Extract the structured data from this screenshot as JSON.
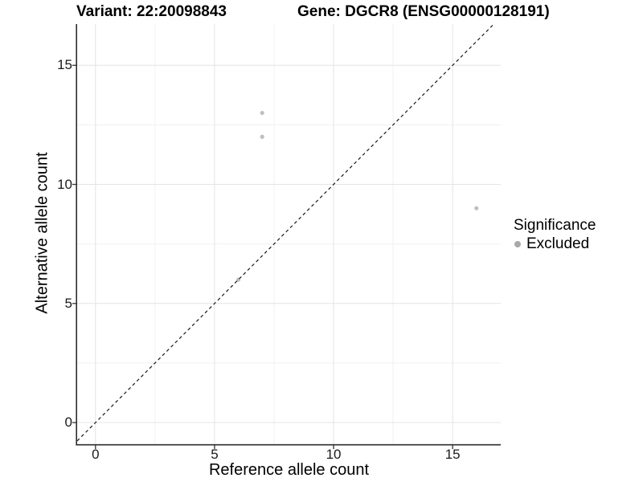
{
  "header": {
    "variant_title": "Variant: 22:20098843",
    "gene_title": "Gene: DGCR8 (ENSG00000128191)"
  },
  "chart_data": {
    "type": "scatter",
    "xlabel": "Reference allele count",
    "ylabel": "Alternative allele count",
    "xlim": [
      -0.77,
      17.02
    ],
    "ylim": [
      -0.91,
      16.73
    ],
    "x_major_ticks": [
      0,
      5,
      10,
      15
    ],
    "x_tick_labels": [
      "0",
      "5",
      "10",
      "15"
    ],
    "y_major_ticks": [
      0,
      5,
      10,
      15
    ],
    "y_tick_labels": [
      "0",
      "5",
      "10",
      "15"
    ],
    "x_minor_gridlines": [
      2.5,
      7.5,
      12.5
    ],
    "y_minor_gridlines": [
      2.5,
      7.5,
      12.5
    ],
    "grid": true,
    "reference_line": {
      "type": "identity y=x",
      "style": "dashed",
      "color": "#1a1a1a"
    },
    "series": [
      {
        "name": "Excluded",
        "color": "#bfbfbf",
        "points": [
          {
            "x": 7,
            "y": 13
          },
          {
            "x": 7,
            "y": 12
          },
          {
            "x": 6,
            "y": 6
          },
          {
            "x": 16,
            "y": 9
          }
        ]
      }
    ],
    "legend": {
      "title": "Significance",
      "position": "right",
      "items": [
        {
          "label": "Excluded",
          "color": "#a9a9a9"
        }
      ]
    },
    "colors": {
      "background": "#ffffff",
      "grid_major": "#e4e4e4",
      "grid_minor": "#f0f0f0",
      "axis_line": "#2e2e2e",
      "tick_mark": "#333333",
      "tick_text": "#1a1a1a",
      "title_text": "#000000"
    }
  }
}
